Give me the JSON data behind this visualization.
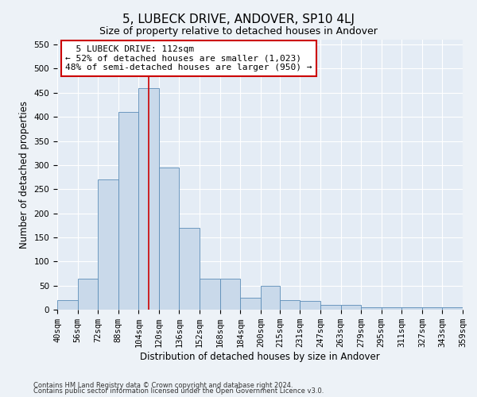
{
  "title": "5, LUBECK DRIVE, ANDOVER, SP10 4LJ",
  "subtitle": "Size of property relative to detached houses in Andover",
  "xlabel": "Distribution of detached houses by size in Andover",
  "ylabel": "Number of detached properties",
  "footer1": "Contains HM Land Registry data © Crown copyright and database right 2024.",
  "footer2": "Contains public sector information licensed under the Open Government Licence v3.0.",
  "annotation_line1": "5 LUBECK DRIVE: 112sqm",
  "annotation_line2": "← 52% of detached houses are smaller (1,023)",
  "annotation_line3": "48% of semi-detached houses are larger (950) →",
  "bar_color": "#c9d9ea",
  "bar_edge_color": "#5b8db8",
  "vline_color": "#cc0000",
  "vline_x": 112,
  "background_color": "#e4ecf5",
  "grid_color": "#ffffff",
  "bins": [
    40,
    56,
    72,
    88,
    104,
    120,
    136,
    152,
    168,
    184,
    200,
    215,
    231,
    247,
    263,
    279,
    295,
    311,
    327,
    343,
    359
  ],
  "counts": [
    20,
    65,
    270,
    410,
    460,
    295,
    170,
    65,
    65,
    25,
    50,
    20,
    18,
    10,
    10,
    5,
    5,
    5,
    5,
    5
  ],
  "ylim": [
    0,
    560
  ],
  "yticks": [
    0,
    50,
    100,
    150,
    200,
    250,
    300,
    350,
    400,
    450,
    500,
    550
  ],
  "title_fontsize": 11,
  "subtitle_fontsize": 9,
  "xlabel_fontsize": 8.5,
  "ylabel_fontsize": 8.5,
  "tick_fontsize": 7.5,
  "footer_fontsize": 6,
  "annotation_fontsize": 8
}
